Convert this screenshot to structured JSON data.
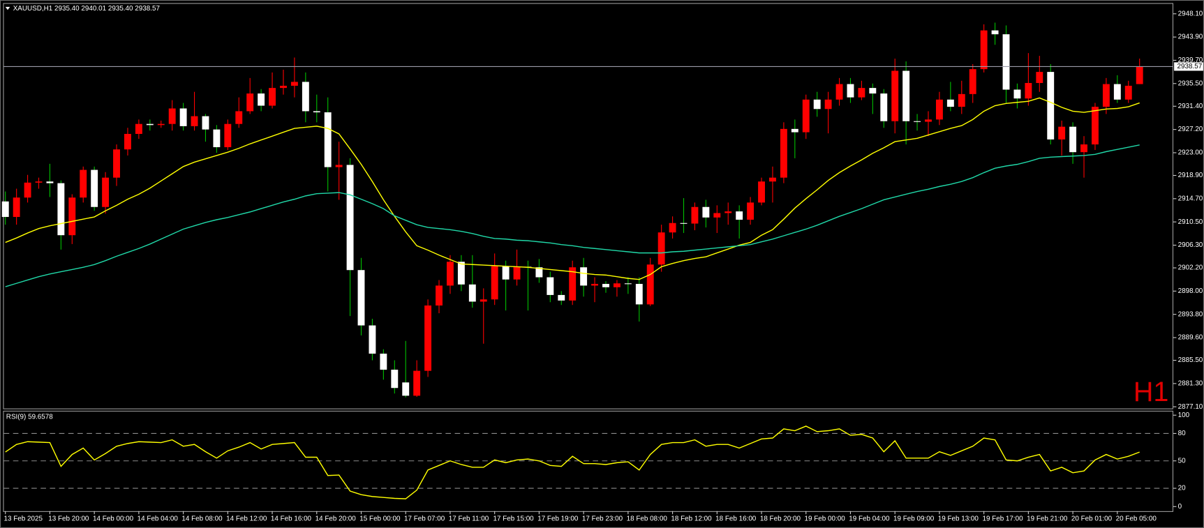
{
  "chart_data": [
    {
      "type": "candlestick",
      "header": "XAUUSD,H1  2935.40 2940.01 2935.40 2938.57",
      "watermark": "H1",
      "grid": false,
      "price_line": true,
      "up_color": "#ff0000",
      "down_color": "#ffffff",
      "down_wick_color": "#00c000",
      "price_line_color": "#9a9aa8",
      "categories": [
        "13 Feb 2025",
        null,
        null,
        null,
        "13 Feb 20:00",
        null,
        null,
        null,
        "14 Feb 00:00",
        null,
        null,
        null,
        "14 Feb 04:00",
        null,
        null,
        null,
        "14 Feb 08:00",
        null,
        null,
        null,
        "14 Feb 12:00",
        null,
        null,
        null,
        "14 Feb 16:00",
        null,
        null,
        null,
        "14 Feb 20:00",
        null,
        null,
        null,
        "15 Feb 00:00",
        null,
        null,
        null,
        "17 Feb 07:00",
        null,
        null,
        null,
        "17 Feb 11:00",
        null,
        null,
        null,
        "17 Feb 15:00",
        null,
        null,
        null,
        "17 Feb 19:00",
        null,
        null,
        null,
        "17 Feb 23:00",
        null,
        null,
        null,
        "18 Feb 08:00",
        null,
        null,
        null,
        "18 Feb 12:00",
        null,
        null,
        null,
        "18 Feb 16:00",
        null,
        null,
        null,
        "18 Feb 20:00",
        null,
        null,
        null,
        "19 Feb 00:00",
        null,
        null,
        null,
        "19 Feb 04:00",
        null,
        null,
        null,
        "19 Feb 09:00",
        null,
        null,
        null,
        "19 Feb 13:00",
        null,
        null,
        null,
        "19 Feb 17:00",
        null,
        null,
        null,
        "19 Feb 21:00",
        null,
        null,
        null,
        "20 Feb 01:00",
        null,
        null,
        null,
        "20 Feb 05:00",
        null,
        null
      ],
      "open": [
        2914.2,
        2911.4,
        2914.9,
        2917.6,
        2917.8,
        2917.5,
        2908.1,
        2914.9,
        2919.9,
        2913.2,
        2918.5,
        2923.6,
        2926.4,
        2928.2,
        2928.0,
        2928.2,
        2931.0,
        2927.8,
        2929.6,
        2927.2,
        2924.0,
        2928.2,
        2930.5,
        2933.7,
        2931.5,
        2934.7,
        2935.1,
        2935.8,
        2930.5,
        2930.3,
        2920.4,
        2920.8,
        2901.8,
        2891.8,
        2886.7,
        2883.8,
        2881.5,
        2879.1,
        2883.6,
        2895.4,
        2899.0,
        2903.3,
        2899.2,
        2896.1,
        2896.5,
        2902.5,
        2900.1,
        2902.4,
        2902.3,
        2900.5,
        2897.3,
        2896.3,
        2902.3,
        2899.0,
        2899.3,
        2898.7,
        2899.4,
        2899.3,
        2895.6,
        2902.8,
        2908.6,
        2910.3,
        2910.2,
        2913.2,
        2911.3,
        2912.1,
        2912.4,
        2910.9,
        2914.0,
        2917.8,
        2918.5,
        2927.3,
        2926.7,
        2932.6,
        2930.9,
        2932.6,
        2935.4,
        2933.0,
        2934.7,
        2933.7,
        2928.7,
        2937.8,
        2928.7,
        2928.6,
        2929.0,
        2932.6,
        2931.3,
        2933.6,
        2938.1,
        2945.1,
        2944.4,
        2934.4,
        2932.8,
        2935.6,
        2937.6,
        2925.4,
        2927.7,
        2923.1,
        2924.5,
        2931.3,
        2935.4,
        2932.6,
        2935.4
      ],
      "high": [
        2916,
        2916.5,
        2919,
        2918.5,
        2921,
        2918,
        2915.5,
        2920.5,
        2920.5,
        2919.5,
        2924.5,
        2927.5,
        2929,
        2929,
        2928.8,
        2932.5,
        2932,
        2934,
        2930,
        2928,
        2929,
        2933,
        2936.5,
        2934.5,
        2937.5,
        2938,
        2940.2,
        2937.5,
        2933.5,
        2933,
        2925,
        2922,
        2904,
        2893,
        2887.5,
        2885.5,
        2889,
        2885.5,
        2896.5,
        2900,
        2904.5,
        2904.5,
        2904.5,
        2898.5,
        2904.8,
        2903.5,
        2905.5,
        2903.5,
        2903.8,
        2901.5,
        2898,
        2903.5,
        2904,
        2900.5,
        2899.8,
        2900,
        2900.5,
        2900.5,
        2904,
        2910,
        2911.5,
        2914.8,
        2914,
        2914.5,
        2913.5,
        2914,
        2913.5,
        2915,
        2918.5,
        2920.5,
        2928.5,
        2929,
        2933.5,
        2934,
        2934,
        2936.5,
        2936.5,
        2936,
        2935.5,
        2934.5,
        2940,
        2939.5,
        2930,
        2930.5,
        2934,
        2935.8,
        2936,
        2939,
        2946.2,
        2946.5,
        2946,
        2935.5,
        2941,
        2940.5,
        2939,
        2928.8,
        2928.5,
        2926,
        2932,
        2936.5,
        2937,
        2936,
        2940.01
      ],
      "low": [
        2910,
        2910,
        2914,
        2916.5,
        2915,
        2905.5,
        2906.5,
        2914,
        2912.5,
        2912,
        2917,
        2922.5,
        2925.5,
        2927,
        2927.5,
        2927,
        2927,
        2927,
        2925,
        2923,
        2923.5,
        2927.5,
        2930,
        2930.5,
        2931,
        2933.5,
        2933,
        2928.5,
        2928.5,
        2916,
        2914.5,
        2893.5,
        2890,
        2885.5,
        2882,
        2879.5,
        2878.8,
        2878.9,
        2882.5,
        2894,
        2897.5,
        2898,
        2895,
        2888.5,
        2895.5,
        2894.5,
        2899,
        2894.5,
        2899.5,
        2896,
        2895.5,
        2895.5,
        2897,
        2896,
        2897.7,
        2897,
        2897.5,
        2892.5,
        2895.3,
        2901.5,
        2907.5,
        2908.5,
        2909,
        2909.5,
        2908.5,
        2910,
        2907.5,
        2910,
        2913.5,
        2914,
        2917.5,
        2922,
        2925.5,
        2929.5,
        2926.5,
        2931.5,
        2932,
        2932.5,
        2930,
        2927.5,
        2926.5,
        2924.5,
        2927,
        2926,
        2928,
        2930.5,
        2930,
        2932,
        2937.5,
        2942.5,
        2932,
        2931,
        2931.5,
        2934,
        2924.5,
        2922.5,
        2921,
        2918.5,
        2923.5,
        2930,
        2932,
        2932,
        2935.4
      ],
      "close": [
        2911.4,
        2914.9,
        2917.6,
        2917.8,
        2917.5,
        2908.1,
        2914.9,
        2919.9,
        2913.2,
        2918.5,
        2923.6,
        2926.4,
        2928.2,
        2928.0,
        2928.2,
        2931.0,
        2927.8,
        2929.6,
        2927.2,
        2924.0,
        2928.2,
        2930.5,
        2933.7,
        2931.5,
        2934.7,
        2935.1,
        2935.8,
        2930.5,
        2930.3,
        2920.4,
        2920.8,
        2901.8,
        2891.8,
        2886.7,
        2883.8,
        2880.5,
        2879.1,
        2883.6,
        2895.4,
        2899.0,
        2903.3,
        2899.2,
        2896.1,
        2896.5,
        2902.5,
        2900.1,
        2902.4,
        2902.3,
        2900.5,
        2897.3,
        2896.3,
        2902.3,
        2899.0,
        2899.3,
        2898.7,
        2899.4,
        2899.3,
        2895.6,
        2902.8,
        2908.6,
        2910.3,
        2910.2,
        2913.2,
        2911.3,
        2912.1,
        2912.4,
        2910.9,
        2914.0,
        2917.8,
        2918.5,
        2927.3,
        2926.7,
        2932.6,
        2930.9,
        2932.6,
        2935.4,
        2933.0,
        2934.7,
        2933.7,
        2928.7,
        2937.8,
        2928.7,
        2928.6,
        2929.0,
        2932.6,
        2931.3,
        2933.6,
        2938.1,
        2945.1,
        2944.4,
        2934.4,
        2932.8,
        2935.6,
        2937.6,
        2925.4,
        2927.7,
        2923.1,
        2924.5,
        2931.3,
        2935.4,
        2932.6,
        2935.1,
        2938.57
      ],
      "overlays": [
        {
          "color": "#ffff00",
          "values": [
            2906.8,
            2907.6,
            2908.5,
            2909.3,
            2909.8,
            2910.2,
            2910.6,
            2911.0,
            2911.4,
            2912.5,
            2913.5,
            2914.6,
            2915.5,
            2916.6,
            2917.9,
            2919.2,
            2920.5,
            2921.3,
            2921.9,
            2922.5,
            2923.1,
            2923.8,
            2924.6,
            2925.3,
            2926.0,
            2926.7,
            2927.4,
            2927.6,
            2927.8,
            2927.4,
            2926.4,
            2923.7,
            2920.9,
            2917.8,
            2914.5,
            2911.5,
            2908.7,
            2906.2,
            2905.4,
            2904.5,
            2903.7,
            2902.9,
            2902.8,
            2902.7,
            2902.6,
            2902.5,
            2902.4,
            2902.3,
            2902.1,
            2901.9,
            2901.7,
            2901.5,
            2901.2,
            2901.0,
            2900.9,
            2900.6,
            2900.3,
            2900.1,
            2901.0,
            2902.4,
            2903.0,
            2903.5,
            2903.9,
            2904.2,
            2904.9,
            2905.6,
            2906.3,
            2906.8,
            2908.1,
            2909.1,
            2911.0,
            2913.0,
            2914.7,
            2916.3,
            2918.0,
            2919.4,
            2920.6,
            2921.7,
            2922.9,
            2923.9,
            2925.0,
            2925.3,
            2925.6,
            2926.2,
            2926.8,
            2927.4,
            2927.9,
            2929.0,
            2930.5,
            2931.5,
            2931.9,
            2932.1,
            2932.3,
            2932.9,
            2932.1,
            2931.2,
            2930.5,
            2930.3,
            2930.6,
            2930.9,
            2931.0,
            2931.3,
            2932.0
          ]
        },
        {
          "color": "#20d8a8",
          "values": [
            2898.8,
            2899.4,
            2900.0,
            2900.6,
            2901.1,
            2901.5,
            2901.9,
            2902.3,
            2902.8,
            2903.5,
            2904.3,
            2905.0,
            2905.7,
            2906.5,
            2907.4,
            2908.3,
            2909.2,
            2909.8,
            2910.4,
            2910.9,
            2911.3,
            2911.8,
            2912.3,
            2912.9,
            2913.5,
            2914.1,
            2914.6,
            2915.2,
            2915.6,
            2915.7,
            2915.8,
            2915.4,
            2914.6,
            2913.8,
            2912.9,
            2911.6,
            2910.8,
            2910.0,
            2909.5,
            2909.3,
            2909.1,
            2908.8,
            2908.4,
            2907.9,
            2907.5,
            2907.4,
            2907.2,
            2907.1,
            2906.9,
            2906.7,
            2906.4,
            2906.2,
            2905.9,
            2905.7,
            2905.5,
            2905.3,
            2905.1,
            2904.9,
            2904.9,
            2904.9,
            2905.1,
            2905.2,
            2905.4,
            2905.6,
            2905.8,
            2906.0,
            2906.2,
            2906.4,
            2906.9,
            2907.4,
            2908.0,
            2908.6,
            2909.2,
            2909.9,
            2910.7,
            2911.5,
            2912.2,
            2912.9,
            2913.7,
            2914.5,
            2915.0,
            2915.5,
            2916.0,
            2916.4,
            2916.9,
            2917.3,
            2917.8,
            2918.5,
            2919.4,
            2920.2,
            2920.6,
            2920.9,
            2921.4,
            2922.0,
            2922.2,
            2922.3,
            2922.4,
            2922.5,
            2922.7,
            2923.2,
            2923.6,
            2924.0,
            2924.4
          ]
        }
      ],
      "ylim": [
        2876.8,
        2949.9
      ],
      "yticks": [
        {
          "value": 2948.1,
          "label": "2948.10"
        },
        {
          "value": 2943.9,
          "label": "2943.90"
        },
        {
          "value": 2939.7,
          "label": "2939.70"
        },
        {
          "value": 2935.5,
          "label": "2935.50"
        },
        {
          "value": 2931.4,
          "label": "2931.40"
        },
        {
          "value": 2927.2,
          "label": "2927.20"
        },
        {
          "value": 2923,
          "label": "2923.00"
        },
        {
          "value": 2918.9,
          "label": "2918.90"
        },
        {
          "value": 2914.7,
          "label": "2914.70"
        },
        {
          "value": 2910.5,
          "label": "2910.50"
        },
        {
          "value": 2906.3,
          "label": "2906.30"
        },
        {
          "value": 2902.2,
          "label": "2902.20"
        },
        {
          "value": 2898,
          "label": "2898.00"
        },
        {
          "value": 2893.8,
          "label": "2893.80"
        },
        {
          "value": 2889.6,
          "label": "2889.60"
        },
        {
          "value": 2885.5,
          "label": "2885.50"
        },
        {
          "value": 2881.3,
          "label": "2881.30"
        },
        {
          "value": 2877.1,
          "label": "2877.10"
        }
      ]
    },
    {
      "type": "line",
      "title": "RSI(9) 59.6578",
      "color": "#ffff00",
      "values": [
        59.7,
        68,
        71,
        70.5,
        70,
        44,
        57,
        64,
        51,
        58,
        66,
        69,
        71,
        70.5,
        70,
        73,
        66,
        68,
        60,
        53,
        61,
        65,
        70,
        63,
        68,
        69,
        70,
        54,
        54,
        34,
        34.5,
        17,
        13,
        11,
        10,
        9,
        8.5,
        18,
        40,
        45,
        50,
        46,
        43,
        43,
        51,
        48,
        51,
        52,
        50,
        45,
        44,
        55,
        47,
        47,
        46,
        48,
        49,
        40,
        57,
        68,
        70,
        70,
        73,
        66,
        68,
        68,
        64,
        69,
        74,
        75,
        85,
        83,
        88,
        82,
        83,
        85,
        78,
        79,
        75,
        60,
        72,
        53,
        53,
        53,
        60,
        56,
        61,
        66,
        75,
        73,
        51,
        50,
        54,
        57,
        39,
        43,
        37,
        39,
        51,
        57,
        52,
        55,
        59.6578
      ],
      "ylim": [
        -5,
        104
      ],
      "yticks": [
        0,
        20,
        50,
        80,
        100
      ],
      "levels": [
        20,
        50,
        80
      ],
      "level_color": "#8c8c8c"
    }
  ]
}
